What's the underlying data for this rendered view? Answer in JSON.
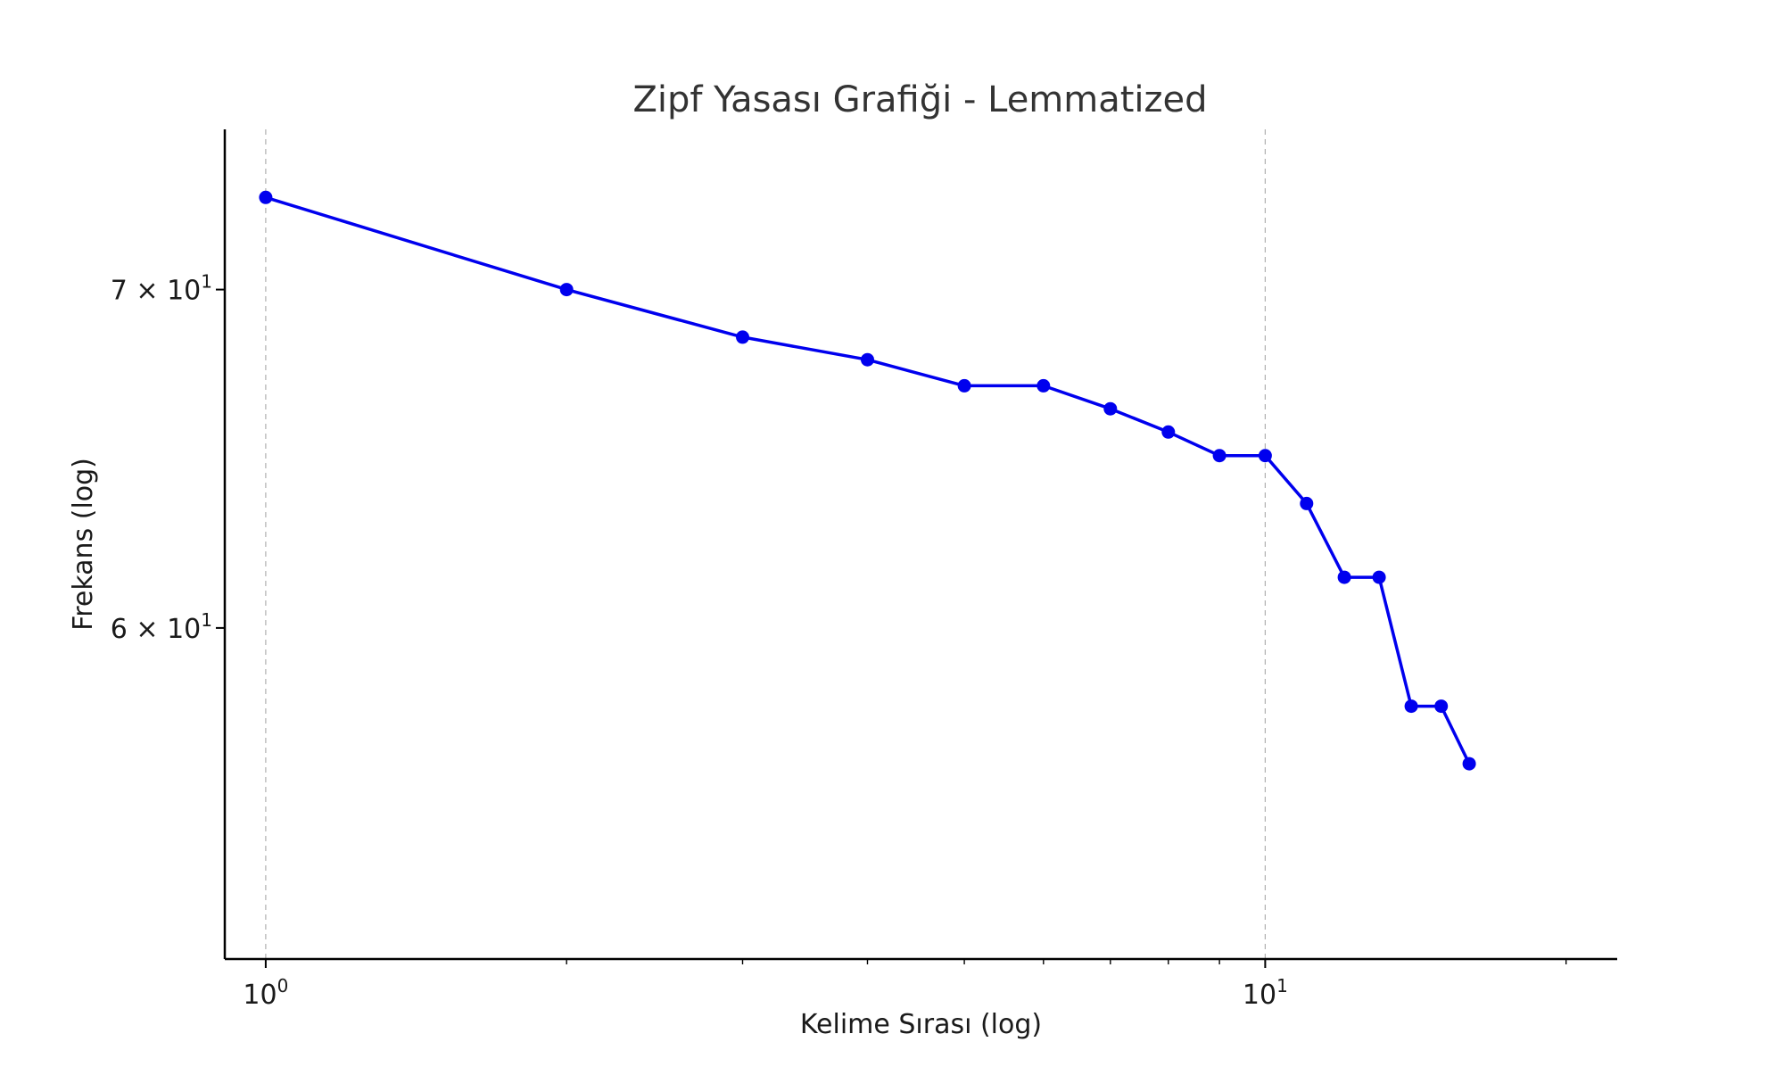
{
  "chart_data": {
    "type": "line",
    "title": "Zipf Yasası Grafiği - Lemmatized",
    "xlabel": "Kelime Sırası (log)",
    "ylabel": "Frekans (log)",
    "xscale": "log",
    "yscale": "log",
    "xlim": [
      0.91,
      22.5
    ],
    "ylim": [
      51.6,
      75.3
    ],
    "grid": "x-major only, dashed",
    "legend": "none",
    "x_ticks": [
      {
        "value": 1,
        "base": "10",
        "exp": "0"
      },
      {
        "value": 10,
        "base": "10",
        "exp": "1"
      }
    ],
    "y_ticks": [
      {
        "value": 70,
        "base": "7 × 10",
        "exp": "1"
      },
      {
        "value": 60,
        "base": "6 × 10",
        "exp": "1"
      }
    ],
    "series": [
      {
        "color": "#0000ee",
        "marker": "circle",
        "x": [
          1,
          2,
          3,
          4,
          5,
          6,
          7,
          8,
          9,
          10,
          11,
          12,
          13,
          14,
          15,
          16
        ],
        "y": [
          73,
          70,
          68.5,
          67.8,
          67,
          67,
          66.3,
          65.6,
          64.9,
          64.9,
          63.5,
          61.4,
          61.4,
          57.9,
          57.9,
          56.4
        ]
      }
    ]
  }
}
